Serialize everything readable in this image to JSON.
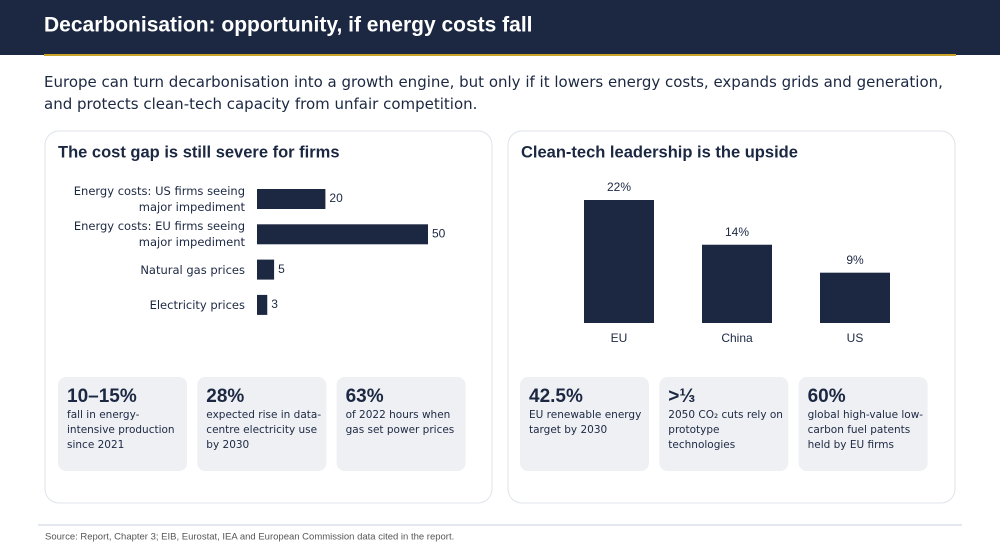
{
  "title": "Decarbonisation: opportunity, if energy costs fall",
  "intro": "Europe can turn decarbonisation into a growth engine, but only if it lowers energy costs, expands grids and generation, and protects clean-tech capacity from unfair competition.",
  "chart_data": [
    {
      "type": "hbar",
      "title": "The cost gap is still severe for firms",
      "categories": [
        "Energy costs: US firms seeing major impediment",
        "Energy costs: EU firms seeing major impediment",
        "Natural gas prices",
        "Electricity prices"
      ],
      "values": [
        20,
        50,
        5,
        3
      ],
      "color": "#1c2842"
    },
    {
      "type": "bar",
      "title": "Clean-tech leadership is the upside",
      "categories": [
        "EU",
        "China",
        "US"
      ],
      "values": [
        22,
        14,
        9
      ],
      "value_labels": [
        "22%",
        "14%",
        "9%"
      ],
      "color": "#1c2842"
    }
  ],
  "cards": [
    [
      {
        "value": "10–15%",
        "text": "fall in energy-intensive production since 2021"
      },
      {
        "value": "28%",
        "text": "expected rise in data-centre electricity use by 2030"
      },
      {
        "value": "63%",
        "text": "of 2022 hours when gas set power prices"
      }
    ],
    [
      {
        "value": "42.5%",
        "text": "EU renewable energy target by 2030"
      },
      {
        "value": ">⅓",
        "text": "2050 CO₂ cuts rely on prototype technologies"
      },
      {
        "value": "60%",
        "text": "global high-value low-carbon fuel patents held by EU firms"
      }
    ]
  ],
  "source": "Source: Report, Chapter 3; EIB, Eurostat, IEA and European Commission data cited in the report."
}
